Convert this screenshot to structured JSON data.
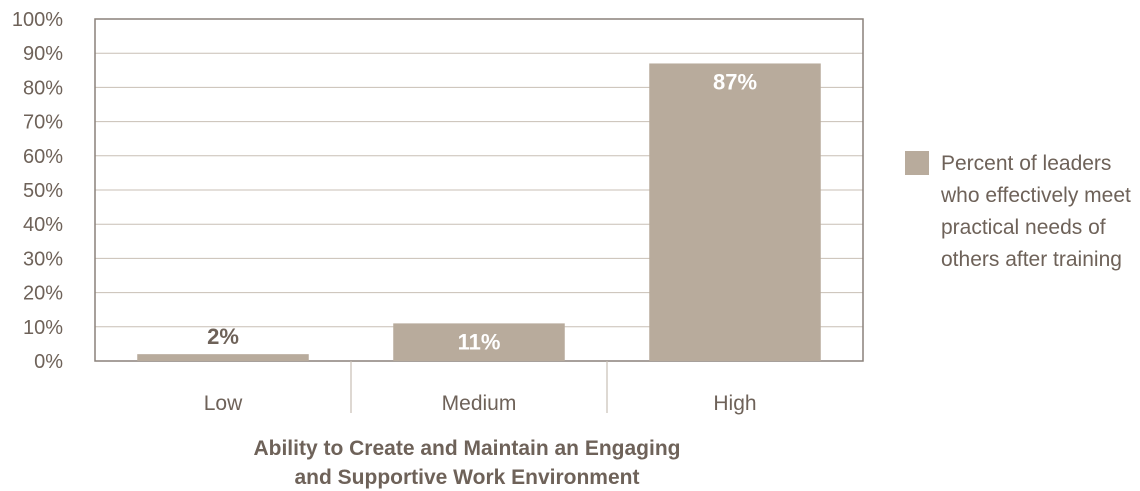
{
  "chart_data": {
    "type": "bar",
    "categories": [
      "Low",
      "Medium",
      "High"
    ],
    "values": [
      2,
      11,
      87
    ],
    "data_labels": [
      "2%",
      "11%",
      "87%"
    ],
    "xlabel_lines": [
      "Ability to Create and Maintain an Engaging",
      "and Supportive Work Environment"
    ],
    "ylabel": "",
    "ylim": [
      0,
      100
    ],
    "yticks": [
      "0%",
      "10%",
      "20%",
      "30%",
      "40%",
      "50%",
      "60%",
      "70%",
      "80%",
      "90%",
      "100%"
    ],
    "grid": true,
    "legend_placement": "right",
    "legend_lines": [
      "Percent of leaders",
      "who effectively meet",
      "practical needs of",
      "others after training"
    ],
    "colors": {
      "bar": "#b8ab9c",
      "text": "#6e6259",
      "label_inside": "#ffffff",
      "grid": "#c8bfb5",
      "frame": "#8a817a"
    }
  }
}
